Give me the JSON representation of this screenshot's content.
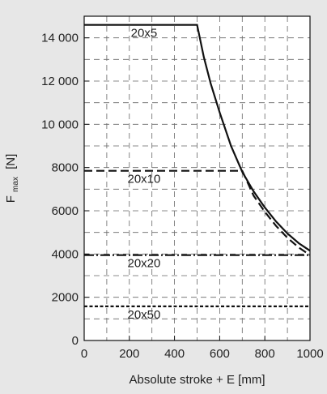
{
  "chart_data": {
    "type": "line",
    "xlabel": "Absolute stroke + E [mm]",
    "ylabel": "F",
    "ylabel_sub": "max",
    "ylabel_unit": "[N]",
    "xlim": [
      0,
      1000
    ],
    "ylim": [
      0,
      15000
    ],
    "x_ticks": [
      0,
      200,
      400,
      600,
      800,
      1000
    ],
    "x_tick_labels": [
      "0",
      "200",
      "400",
      "600",
      "800",
      "1000"
    ],
    "y_ticks": [
      0,
      2000,
      4000,
      6000,
      8000,
      10000,
      12000,
      14000
    ],
    "y_tick_labels": [
      "0",
      "2000",
      "4000",
      "6000",
      "8000",
      "10 000",
      "12 000",
      "14 000"
    ],
    "grid": true,
    "legend": "none",
    "series": [
      {
        "name": "20x5",
        "style": "solid",
        "x": [
          0,
          500,
          530,
          560,
          600,
          650,
          700,
          750,
          800,
          850,
          900,
          950,
          1000
        ],
        "y": [
          14600,
          14600,
          13100,
          11900,
          10550,
          9000,
          7800,
          6900,
          6150,
          5500,
          4950,
          4500,
          4150
        ]
      },
      {
        "name": "20x10",
        "style": "dashed",
        "x": [
          0,
          700,
          750,
          800,
          850,
          900,
          950,
          1000
        ],
        "y": [
          7850,
          7850,
          6700,
          5950,
          5300,
          4750,
          4300,
          3950
        ]
      },
      {
        "name": "20x20",
        "style": "dash-dot",
        "x": [
          0,
          1000
        ],
        "y": [
          3950,
          3950
        ]
      },
      {
        "name": "20x50",
        "style": "dotted",
        "x": [
          0,
          1000
        ],
        "y": [
          1580,
          1580
        ]
      }
    ]
  },
  "colors": {
    "background": "#e7e7e7",
    "plot_area": "#ffffff",
    "grid": "#666666",
    "line": "#111111"
  }
}
